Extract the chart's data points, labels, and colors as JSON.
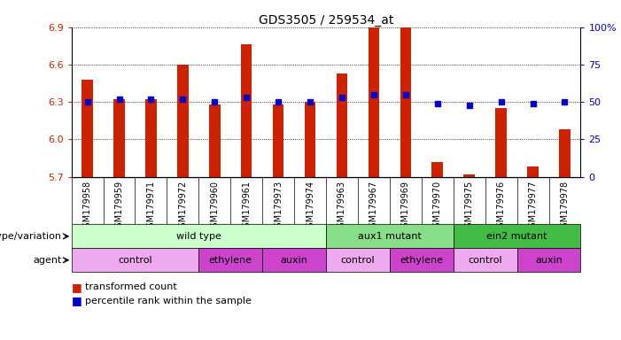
{
  "title": "GDS3505 / 259534_at",
  "samples": [
    "GSM179958",
    "GSM179959",
    "GSM179971",
    "GSM179972",
    "GSM179960",
    "GSM179961",
    "GSM179973",
    "GSM179974",
    "GSM179963",
    "GSM179967",
    "GSM179969",
    "GSM179970",
    "GSM179975",
    "GSM179976",
    "GSM179977",
    "GSM179978"
  ],
  "transformed_count": [
    6.48,
    6.32,
    6.32,
    6.6,
    6.28,
    6.76,
    6.28,
    6.3,
    6.53,
    6.9,
    6.9,
    5.82,
    5.72,
    6.25,
    5.78,
    6.08
  ],
  "percentile_rank": [
    50,
    52,
    52,
    52,
    50,
    53,
    50,
    50,
    53,
    55,
    55,
    49,
    48,
    50,
    49,
    50
  ],
  "ylim_left": [
    5.7,
    6.9
  ],
  "ylim_right": [
    0,
    100
  ],
  "yticks_left": [
    5.7,
    6.0,
    6.3,
    6.6,
    6.9
  ],
  "yticks_right": [
    0,
    25,
    50,
    75,
    100
  ],
  "ytick_labels_right": [
    "0",
    "25",
    "50",
    "75",
    "100%"
  ],
  "bar_color": "#cc2200",
  "dot_color": "#0000cc",
  "bar_bottom": 5.7,
  "groups": [
    {
      "label": "wild type",
      "start": 0,
      "end": 8,
      "color": "#ccffcc"
    },
    {
      "label": "aux1 mutant",
      "start": 8,
      "end": 12,
      "color": "#88dd88"
    },
    {
      "label": "ein2 mutant",
      "start": 12,
      "end": 16,
      "color": "#44bb44"
    }
  ],
  "agents": [
    {
      "label": "control",
      "start": 0,
      "end": 4,
      "color": "#eeaaee"
    },
    {
      "label": "ethylene",
      "start": 4,
      "end": 6,
      "color": "#cc44cc"
    },
    {
      "label": "auxin",
      "start": 6,
      "end": 8,
      "color": "#cc44cc"
    },
    {
      "label": "control",
      "start": 8,
      "end": 10,
      "color": "#eeaaee"
    },
    {
      "label": "ethylene",
      "start": 10,
      "end": 12,
      "color": "#cc44cc"
    },
    {
      "label": "control",
      "start": 12,
      "end": 14,
      "color": "#eeaaee"
    },
    {
      "label": "auxin",
      "start": 14,
      "end": 16,
      "color": "#cc44cc"
    }
  ],
  "legend_items": [
    {
      "label": "transformed count",
      "color": "#cc2200"
    },
    {
      "label": "percentile rank within the sample",
      "color": "#0000cc"
    }
  ],
  "left_label_color": "#cc2200",
  "right_label_color": "#0000cc",
  "row1_label": "genotype/variation",
  "row2_label": "agent",
  "tick_label_size": 7,
  "title_fontsize": 10,
  "bar_width": 0.35
}
